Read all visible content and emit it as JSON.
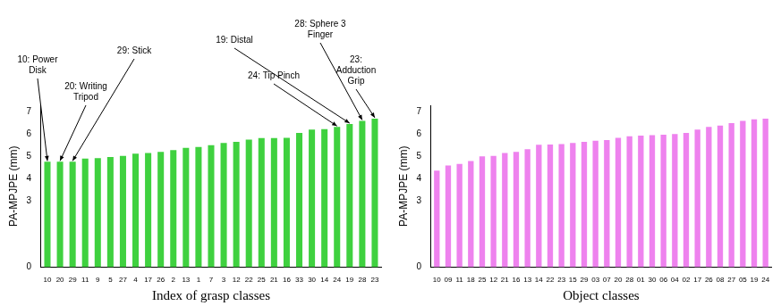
{
  "chart_data": [
    {
      "type": "bar",
      "y_label": "PA-MPJPE (mm)",
      "x_label": "Index of grasp classes",
      "categories": [
        "10",
        "20",
        "29",
        "11",
        "9",
        "5",
        "27",
        "4",
        "17",
        "26",
        "2",
        "13",
        "1",
        "7",
        "3",
        "12",
        "22",
        "25",
        "21",
        "16",
        "33",
        "30",
        "14",
        "24",
        "19",
        "28",
        "23"
      ],
      "values": [
        4.75,
        4.75,
        4.75,
        4.9,
        4.92,
        4.97,
        5.02,
        5.12,
        5.15,
        5.2,
        5.28,
        5.38,
        5.42,
        5.5,
        5.6,
        5.65,
        5.75,
        5.82,
        5.82,
        5.83,
        6.05,
        6.2,
        6.22,
        6.32,
        6.45,
        6.6,
        6.7
      ],
      "color": "#3fd13f",
      "ylim": [
        0,
        7.3
      ],
      "yticks": [
        0,
        3,
        4,
        5,
        6,
        7
      ],
      "grid": false,
      "annotations": [
        {
          "category": "10",
          "text": "10: Power Disk"
        },
        {
          "category": "20",
          "text": "20: Writing Tripod"
        },
        {
          "category": "29",
          "text": "29: Stick"
        },
        {
          "category": "19",
          "text": "19: Distal"
        },
        {
          "category": "24",
          "text": "24: Tip Pinch"
        },
        {
          "category": "28",
          "text": "28: Sphere 3 Finger"
        },
        {
          "category": "23",
          "text": "23: Adduction Grip"
        }
      ]
    },
    {
      "type": "bar",
      "y_label": "PA-MPJPE (mm)",
      "x_label": "Object classes",
      "categories": [
        "10",
        "09",
        "11",
        "18",
        "25",
        "12",
        "21",
        "16",
        "13",
        "14",
        "22",
        "23",
        "15",
        "29",
        "03",
        "07",
        "20",
        "28",
        "01",
        "30",
        "06",
        "04",
        "02",
        "17",
        "26",
        "08",
        "27",
        "05",
        "19",
        "24"
      ],
      "values": [
        4.35,
        4.58,
        4.65,
        4.78,
        5.0,
        5.02,
        5.15,
        5.2,
        5.32,
        5.52,
        5.53,
        5.55,
        5.6,
        5.65,
        5.7,
        5.73,
        5.83,
        5.9,
        5.93,
        5.95,
        5.97,
        6.0,
        6.05,
        6.2,
        6.32,
        6.38,
        6.5,
        6.6,
        6.67,
        6.7
      ],
      "color": "#ee82ee",
      "ylim": [
        0,
        7.3
      ],
      "yticks": [
        0,
        3,
        4,
        5,
        6,
        7
      ],
      "grid": false
    }
  ]
}
